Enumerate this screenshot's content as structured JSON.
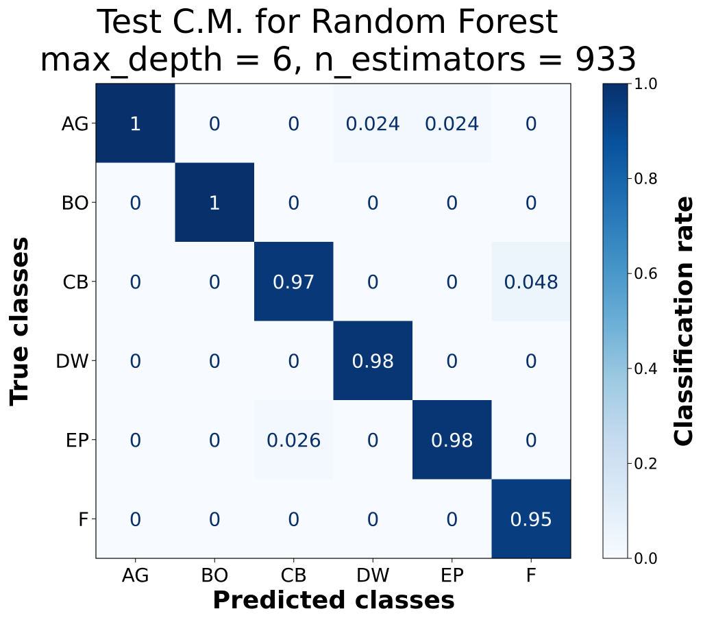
{
  "chart_data": {
    "type": "heatmap",
    "title_line1": "Test C.M. for Random Forest",
    "title_line2": "max_depth = 6, n_estimators = 933",
    "xlabel": "Predicted classes",
    "ylabel": "True classes",
    "x_categories": [
      "AG",
      "BO",
      "CB",
      "DW",
      "EP",
      "F"
    ],
    "y_categories": [
      "AG",
      "BO",
      "CB",
      "DW",
      "EP",
      "F"
    ],
    "values": [
      [
        1,
        0,
        0,
        0.024,
        0.024,
        0
      ],
      [
        0,
        1,
        0,
        0,
        0,
        0
      ],
      [
        0,
        0,
        0.97,
        0,
        0,
        0.048
      ],
      [
        0,
        0,
        0,
        0.98,
        0,
        0
      ],
      [
        0,
        0,
        0.026,
        0,
        0.98,
        0
      ],
      [
        0,
        0,
        0,
        0,
        0,
        0.95
      ]
    ],
    "value_labels": [
      [
        "1",
        "0",
        "0",
        "0.024",
        "0.024",
        "0"
      ],
      [
        "0",
        "1",
        "0",
        "0",
        "0",
        "0"
      ],
      [
        "0",
        "0",
        "0.97",
        "0",
        "0",
        "0.048"
      ],
      [
        "0",
        "0",
        "0",
        "0.98",
        "0",
        "0"
      ],
      [
        "0",
        "0",
        "0.026",
        "0",
        "0.98",
        "0"
      ],
      [
        "0",
        "0",
        "0",
        "0",
        "0",
        "0.95"
      ]
    ],
    "colorbar": {
      "label": "Classification rate",
      "range": [
        0,
        1
      ],
      "ticks": [
        "0.0",
        "0.2",
        "0.4",
        "0.6",
        "0.8",
        "1.0"
      ],
      "colormap": "Blues",
      "color_low": "#f7fbff",
      "color_high": "#08306b"
    }
  }
}
